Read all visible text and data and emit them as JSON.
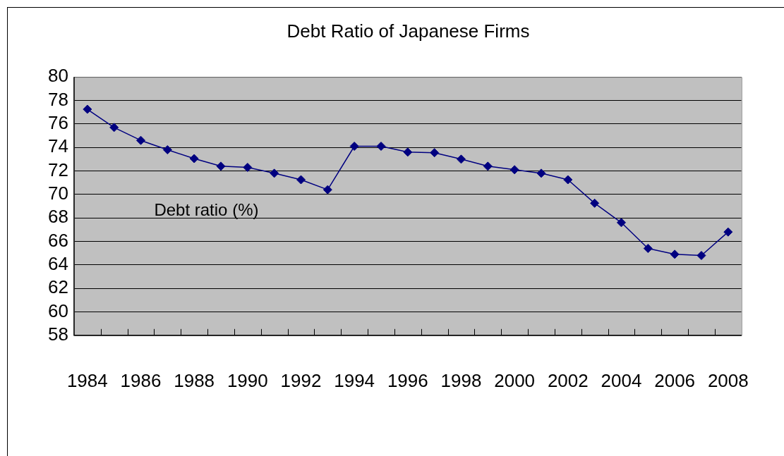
{
  "chart_data": {
    "type": "line",
    "title": "Debt Ratio of Japanese Firms",
    "categories": [
      "1984",
      null,
      "1986",
      null,
      "1988",
      null,
      "1990",
      null,
      "1992",
      null,
      "1994",
      null,
      "1996",
      null,
      "1998",
      null,
      "2000",
      null,
      "2002",
      null,
      "2004",
      null,
      "2006",
      null,
      "2008"
    ],
    "series": [
      {
        "name": "Debt ratio (%)",
        "color": "#000080",
        "values": [
          77.25,
          75.7,
          74.6,
          73.8,
          73.05,
          72.4,
          72.3,
          71.8,
          71.25,
          70.4,
          74.1,
          74.1,
          73.6,
          73.55,
          73.0,
          72.4,
          72.1,
          71.8,
          71.25,
          69.25,
          67.6,
          65.4,
          64.9,
          64.8,
          66.8
        ]
      }
    ],
    "ylim": [
      58,
      80
    ],
    "yticks": [
      58,
      60,
      62,
      64,
      66,
      68,
      70,
      72,
      74,
      76,
      78,
      80
    ],
    "grid": "y",
    "legend": false,
    "marker": "diamond",
    "line_style": "solid"
  }
}
